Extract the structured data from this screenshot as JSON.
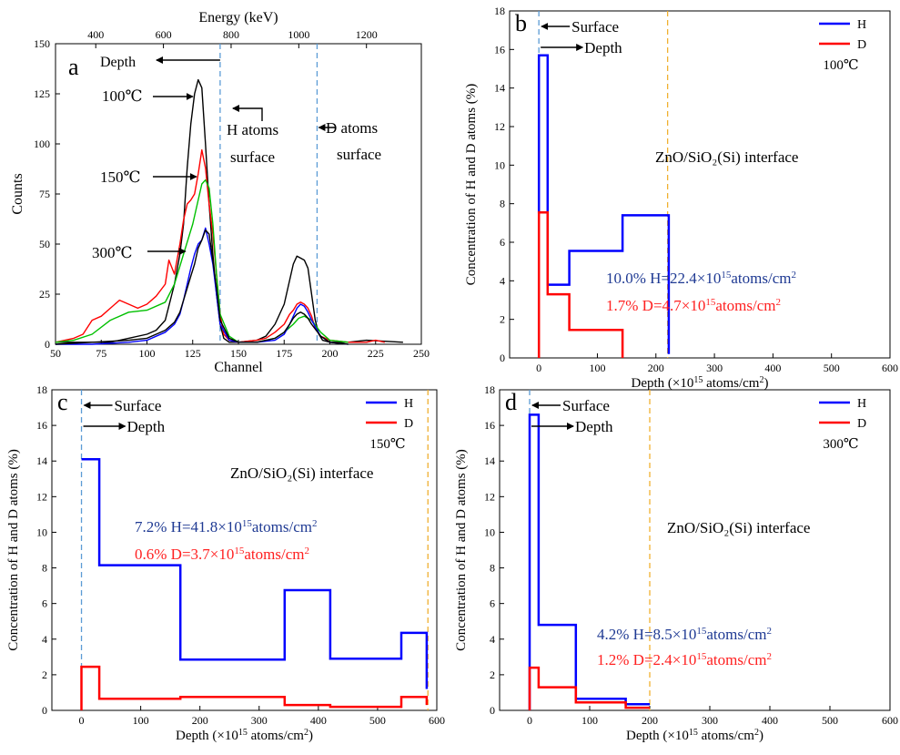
{
  "chart_data": [
    {
      "type": "line",
      "panel_label": "a",
      "xlabel": "Channel",
      "ylabel": "Counts",
      "x2label": "Energy (keV)",
      "xlim": [
        50,
        250
      ],
      "ylim": [
        0,
        150
      ],
      "x_ticks": [
        50,
        75,
        100,
        125,
        150,
        175,
        200,
        225,
        250
      ],
      "y_ticks": [
        0,
        25,
        50,
        75,
        100,
        125,
        150
      ],
      "x2_ticks": [
        {
          "label": "400",
          "channel": 72
        },
        {
          "label": "600",
          "channel": 109
        },
        {
          "label": "800",
          "channel": 146
        },
        {
          "label": "1000",
          "channel": 183
        },
        {
          "label": "1200",
          "channel": 220
        }
      ],
      "ref_lines_x": [
        140,
        193
      ],
      "series": [
        {
          "color": "#000000",
          "x": [
            50,
            60,
            70,
            80,
            90,
            100,
            105,
            110,
            115,
            118,
            120,
            122,
            124,
            126,
            128,
            130,
            132,
            134,
            136,
            138,
            140,
            142,
            145,
            150,
            160,
            165,
            170,
            175,
            178,
            180,
            182,
            184,
            186,
            188,
            190,
            192,
            194,
            196,
            200,
            210,
            220,
            240
          ],
          "y": [
            1,
            1,
            1,
            1,
            3,
            5,
            7,
            12,
            30,
            45,
            60,
            88,
            110,
            125,
            132,
            128,
            100,
            70,
            45,
            25,
            10,
            3,
            1,
            1,
            2,
            4,
            10,
            20,
            32,
            40,
            44,
            43,
            42,
            38,
            25,
            12,
            5,
            2,
            1,
            1,
            2,
            1
          ]
        },
        {
          "color": "#ff0000",
          "x": [
            50,
            60,
            65,
            70,
            75,
            80,
            85,
            90,
            95,
            100,
            105,
            110,
            112,
            115,
            118,
            120,
            122,
            124,
            126,
            128,
            130,
            132,
            134,
            136,
            138,
            140,
            142,
            145,
            150,
            160,
            165,
            170,
            175,
            178,
            180,
            182,
            184,
            186,
            188,
            190,
            192,
            195,
            200,
            210,
            220,
            225,
            230
          ],
          "y": [
            1,
            3,
            5,
            12,
            14,
            18,
            22,
            20,
            18,
            20,
            24,
            30,
            42,
            35,
            50,
            62,
            70,
            72,
            75,
            85,
            97,
            88,
            70,
            55,
            35,
            15,
            5,
            2,
            1,
            2,
            3,
            6,
            10,
            15,
            17,
            20,
            21,
            20,
            18,
            14,
            8,
            4,
            2,
            1,
            1,
            2,
            1
          ]
        },
        {
          "color": "#00c000",
          "x": [
            50,
            60,
            70,
            80,
            90,
            100,
            110,
            115,
            120,
            125,
            128,
            130,
            132,
            134,
            136,
            138,
            140,
            145,
            150,
            160,
            170,
            175,
            180,
            183,
            186,
            190,
            195,
            200,
            210
          ],
          "y": [
            1,
            2,
            5,
            12,
            16,
            17,
            21,
            30,
            45,
            60,
            72,
            80,
            82,
            78,
            60,
            35,
            15,
            4,
            1,
            1,
            3,
            6,
            10,
            13,
            14,
            12,
            6,
            2,
            1
          ]
        },
        {
          "color": "#0000ff",
          "x": [
            50,
            70,
            90,
            100,
            105,
            110,
            115,
            118,
            120,
            122,
            124,
            126,
            128,
            130,
            132,
            134,
            136,
            138,
            140,
            145,
            150,
            160,
            170,
            175,
            178,
            180,
            182,
            184,
            186,
            188,
            190,
            195,
            200,
            210
          ],
          "y": [
            0,
            0,
            1,
            2,
            4,
            6,
            10,
            15,
            22,
            30,
            38,
            45,
            50,
            52,
            58,
            50,
            40,
            25,
            10,
            2,
            1,
            1,
            2,
            5,
            10,
            14,
            18,
            20,
            19,
            16,
            12,
            4,
            1,
            0
          ]
        },
        {
          "color": "#000000",
          "x": [
            50,
            70,
            90,
            100,
            105,
            110,
            115,
            118,
            120,
            122,
            124,
            126,
            128,
            130,
            132,
            134,
            136,
            138,
            140,
            145,
            150,
            160,
            170,
            175,
            178,
            180,
            182,
            184,
            186,
            188,
            190,
            195,
            200,
            210
          ],
          "y": [
            0,
            1,
            2,
            3,
            5,
            7,
            11,
            16,
            22,
            28,
            34,
            40,
            48,
            52,
            57,
            55,
            42,
            28,
            12,
            3,
            1,
            1,
            3,
            6,
            10,
            13,
            15,
            16,
            15,
            13,
            10,
            4,
            1,
            0
          ]
        }
      ],
      "annotations": [
        {
          "text": "Depth",
          "arrow": "left"
        },
        {
          "text": "100℃"
        },
        {
          "text": "150℃"
        },
        {
          "text": "300℃"
        },
        {
          "text": "H atoms"
        },
        {
          "text": "surface"
        },
        {
          "text": "D atoms"
        },
        {
          "text": "surface"
        }
      ]
    },
    {
      "type": "line",
      "panel_label": "b",
      "xlabel": "Depth (×10^15 atoms/cm^2)",
      "ylabel": "Concentration of H and D atoms (%)",
      "xlim": [
        -50,
        600
      ],
      "ylim": [
        0,
        18
      ],
      "x_ticks": [
        0,
        100,
        200,
        300,
        400,
        500,
        600
      ],
      "y_ticks": [
        0,
        2,
        4,
        6,
        8,
        10,
        12,
        14,
        16,
        18
      ],
      "ref_lines_x": [
        {
          "x": 0,
          "color": "#5b9bd5"
        },
        {
          "x": 220,
          "color": "#f0b030"
        }
      ],
      "legend": [
        "H",
        "D"
      ],
      "temperature": "100℃",
      "interface_label": "ZnO/SiO₂(Si) interface",
      "surface_label": "Surface",
      "depth_label": "Depth",
      "H_label": {
        "pct": "10.0%",
        "text": "H=22.4×10",
        "exp": "15",
        "unit": "atoms/cm",
        "unit_exp": "2"
      },
      "D_label": {
        "pct": "1.7%",
        "text": "D=4.7×10",
        "exp": "15",
        "unit": "atoms/cm",
        "unit_exp": "2"
      },
      "series": [
        {
          "name": "H",
          "color": "#0000ff",
          "steps": [
            [
              0,
              7.5
            ],
            [
              0,
              15.7
            ],
            [
              15,
              15.7
            ],
            [
              15,
              3.8
            ],
            [
              52,
              3.8
            ],
            [
              52,
              5.55
            ],
            [
              143,
              5.55
            ],
            [
              143,
              7.4
            ],
            [
              222,
              7.4
            ],
            [
              222,
              0.2
            ]
          ]
        },
        {
          "name": "D",
          "color": "#ff0000",
          "steps": [
            [
              0,
              0
            ],
            [
              0,
              7.55
            ],
            [
              15,
              7.55
            ],
            [
              15,
              3.3
            ],
            [
              52,
              3.3
            ],
            [
              52,
              1.45
            ],
            [
              143,
              1.45
            ],
            [
              143,
              0
            ]
          ]
        }
      ]
    },
    {
      "type": "line",
      "panel_label": "c",
      "xlabel": "Depth (×10^15 atoms/cm^2)",
      "ylabel": "Concentration of H and D atoms (%)",
      "xlim": [
        -50,
        600
      ],
      "ylim": [
        0,
        18
      ],
      "x_ticks": [
        0,
        100,
        200,
        300,
        400,
        500,
        600
      ],
      "y_ticks": [
        0,
        2,
        4,
        6,
        8,
        10,
        12,
        14,
        16,
        18
      ],
      "ref_lines_x": [
        {
          "x": 0,
          "color": "#5b9bd5"
        },
        {
          "x": 585,
          "color": "#f0b030"
        }
      ],
      "legend": [
        "H",
        "D"
      ],
      "temperature": "150℃",
      "interface_label": "ZnO/SiO₂(Si) interface",
      "surface_label": "Surface",
      "depth_label": "Depth",
      "H_label": {
        "pct": "7.2%",
        "text": "H=41.8×10",
        "exp": "15",
        "unit": "atoms/cm",
        "unit_exp": "2"
      },
      "D_label": {
        "pct": "0.6%",
        "text": "D=3.7×10",
        "exp": "15",
        "unit": "atoms/cm",
        "unit_exp": "2"
      },
      "series": [
        {
          "name": "H",
          "color": "#0000ff",
          "steps": [
            [
              0,
              14.1
            ],
            [
              30,
              14.1
            ],
            [
              30,
              8.15
            ],
            [
              167,
              8.15
            ],
            [
              167,
              2.85
            ],
            [
              343,
              2.85
            ],
            [
              343,
              6.75
            ],
            [
              420,
              6.75
            ],
            [
              420,
              2.9
            ],
            [
              540,
              2.9
            ],
            [
              540,
              4.35
            ],
            [
              583,
              4.35
            ],
            [
              583,
              1.2
            ]
          ]
        },
        {
          "name": "D",
          "color": "#ff0000",
          "steps": [
            [
              0,
              0
            ],
            [
              0,
              2.45
            ],
            [
              30,
              2.45
            ],
            [
              30,
              0.65
            ],
            [
              167,
              0.65
            ],
            [
              167,
              0.75
            ],
            [
              343,
              0.75
            ],
            [
              343,
              0.3
            ],
            [
              420,
              0.3
            ],
            [
              420,
              0.2
            ],
            [
              540,
              0.2
            ],
            [
              540,
              0.75
            ],
            [
              583,
              0.75
            ],
            [
              583,
              0.3
            ]
          ]
        }
      ]
    },
    {
      "type": "line",
      "panel_label": "d",
      "xlabel": "Depth (×10^15 atoms/cm^2)",
      "ylabel": "Concentration of H and D atoms (%)",
      "xlim": [
        -50,
        600
      ],
      "ylim": [
        0,
        18
      ],
      "x_ticks": [
        0,
        100,
        200,
        300,
        400,
        500,
        600
      ],
      "y_ticks": [
        0,
        2,
        4,
        6,
        8,
        10,
        12,
        14,
        16,
        18
      ],
      "ref_lines_x": [
        {
          "x": 0,
          "color": "#5b9bd5"
        },
        {
          "x": 200,
          "color": "#f0b030"
        }
      ],
      "legend": [
        "H",
        "D"
      ],
      "temperature": "300℃",
      "interface_label": "ZnO/SiO₂(Si) interface",
      "surface_label": "Surface",
      "depth_label": "Depth",
      "H_label": {
        "pct": "4.2%",
        "text": "H=8.5×10",
        "exp": "15",
        "unit": "atoms/cm",
        "unit_exp": "2"
      },
      "D_label": {
        "pct": "1.2%",
        "text": "D=2.4×10",
        "exp": "15",
        "unit": "atoms/cm",
        "unit_exp": "2"
      },
      "series": [
        {
          "name": "H",
          "color": "#0000ff",
          "steps": [
            [
              0,
              0
            ],
            [
              0,
              16.6
            ],
            [
              15,
              16.6
            ],
            [
              15,
              4.8
            ],
            [
              77,
              4.8
            ],
            [
              77,
              0.65
            ],
            [
              160,
              0.65
            ],
            [
              160,
              0.35
            ],
            [
              200,
              0.35
            ]
          ]
        },
        {
          "name": "D",
          "color": "#ff0000",
          "steps": [
            [
              0,
              0
            ],
            [
              0,
              2.4
            ],
            [
              15,
              2.4
            ],
            [
              15,
              1.3
            ],
            [
              77,
              1.3
            ],
            [
              77,
              0.45
            ],
            [
              160,
              0.45
            ],
            [
              160,
              0.15
            ],
            [
              200,
              0.15
            ]
          ]
        }
      ]
    }
  ]
}
